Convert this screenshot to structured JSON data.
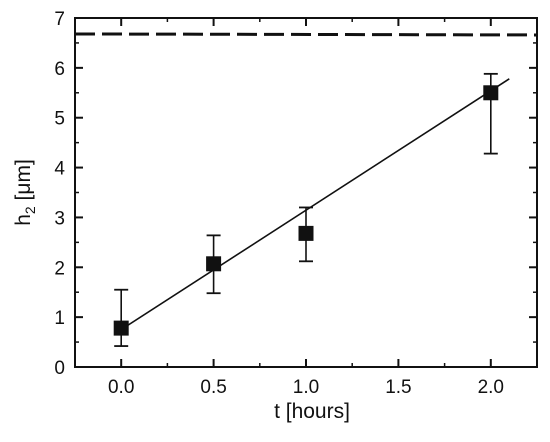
{
  "chart_data": {
    "type": "scatter",
    "xlabel": "t [hours]",
    "ylabel_main": "h",
    "ylabel_sub": "2",
    "ylabel_unit": " [μm]",
    "xlim": [
      -0.25,
      2.25
    ],
    "ylim": [
      0,
      7
    ],
    "x_ticks": [
      0.0,
      0.5,
      1.0,
      1.5,
      2.0
    ],
    "x_tick_labels": [
      "0.0",
      "0.5",
      "1.0",
      "1.5",
      "2.0"
    ],
    "y_ticks": [
      0,
      1,
      2,
      3,
      4,
      5,
      6,
      7
    ],
    "y_tick_labels": [
      "0",
      "1",
      "2",
      "3",
      "4",
      "5",
      "6",
      "7"
    ],
    "grid": false,
    "legend": "none",
    "series": [
      {
        "type": "scatter",
        "marker": "square",
        "color": "#111111",
        "points": [
          {
            "x": 0.0,
            "y": 0.78,
            "err_low": 0.42,
            "err_high": 1.55
          },
          {
            "x": 0.5,
            "y": 2.07,
            "err_low": 1.48,
            "err_high": 2.64
          },
          {
            "x": 1.0,
            "y": 2.68,
            "err_low": 2.12,
            "err_high": 3.2
          },
          {
            "x": 2.0,
            "y": 5.5,
            "err_low": 4.28,
            "err_high": 5.88
          }
        ]
      },
      {
        "type": "line",
        "style": "solid",
        "color": "#111111",
        "x": [
          0.0,
          2.1
        ],
        "y": [
          0.75,
          5.78
        ]
      },
      {
        "type": "line",
        "style": "dashed",
        "color": "#111111",
        "x": [
          -0.25,
          2.25
        ],
        "y": [
          6.68,
          6.66
        ]
      }
    ]
  }
}
